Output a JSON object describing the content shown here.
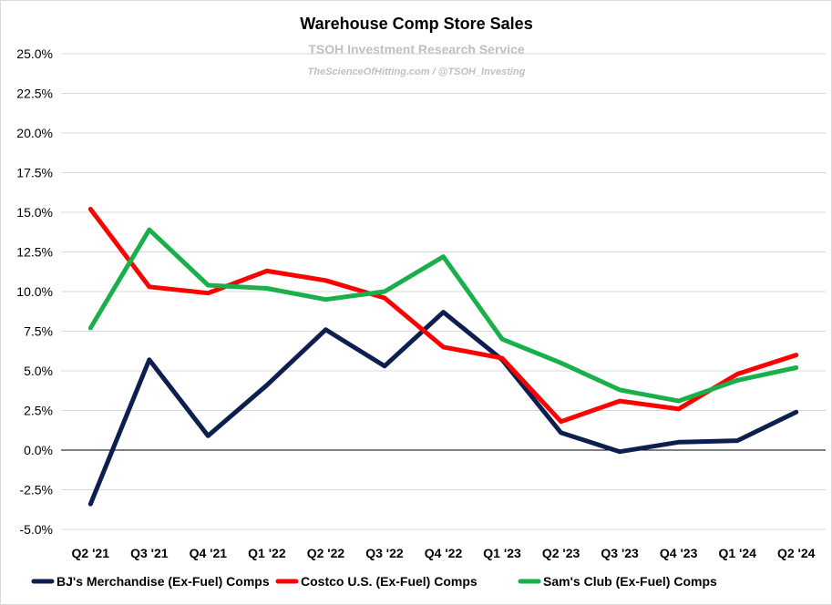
{
  "chart_data": {
    "type": "line",
    "title": "Warehouse Comp Store Sales",
    "subtitle": "TSOH Investment Research Service",
    "subtitle2": "TheScienceOfHitting.com / @TSOH_Investing",
    "categories": [
      "Q2 '21",
      "Q3 '21",
      "Q4 '21",
      "Q1 '22",
      "Q2 '22",
      "Q3 '22",
      "Q4 '22",
      "Q1 '23",
      "Q2 '23",
      "Q3 '23",
      "Q4 '23",
      "Q1 '24",
      "Q2 '24"
    ],
    "ylim": [
      -5,
      25
    ],
    "yticks": [
      25,
      22.5,
      20,
      17.5,
      15,
      12.5,
      10,
      7.5,
      5,
      2.5,
      0,
      -2.5,
      -5
    ],
    "ytick_labels": [
      "25.0%",
      "22.5%",
      "20.0%",
      "17.5%",
      "15.0%",
      "12.5%",
      "10.0%",
      "7.5%",
      "5.0%",
      "2.5%",
      "0.0%",
      "-2.5%",
      "-5.0%"
    ],
    "grid": true,
    "legend_position": "bottom",
    "series": [
      {
        "name": "BJ's Merchandise (Ex-Fuel) Comps",
        "color": "#0c1f4f",
        "values": [
          -3.4,
          5.7,
          0.9,
          4.1,
          7.6,
          5.3,
          8.7,
          5.7,
          1.1,
          -0.1,
          0.5,
          0.6,
          2.4
        ]
      },
      {
        "name": "Costco U.S. (Ex-Fuel) Comps",
        "color": "#ff0000",
        "values": [
          15.2,
          10.3,
          9.9,
          11.3,
          10.7,
          9.6,
          6.5,
          5.8,
          1.8,
          3.1,
          2.6,
          4.8,
          6.0
        ]
      },
      {
        "name": "Sam's Club (Ex-Fuel) Comps",
        "color": "#19b04b",
        "values": [
          7.7,
          13.9,
          10.4,
          10.2,
          9.5,
          10.0,
          12.2,
          7.0,
          5.5,
          3.8,
          3.1,
          4.4,
          5.2
        ]
      }
    ]
  }
}
